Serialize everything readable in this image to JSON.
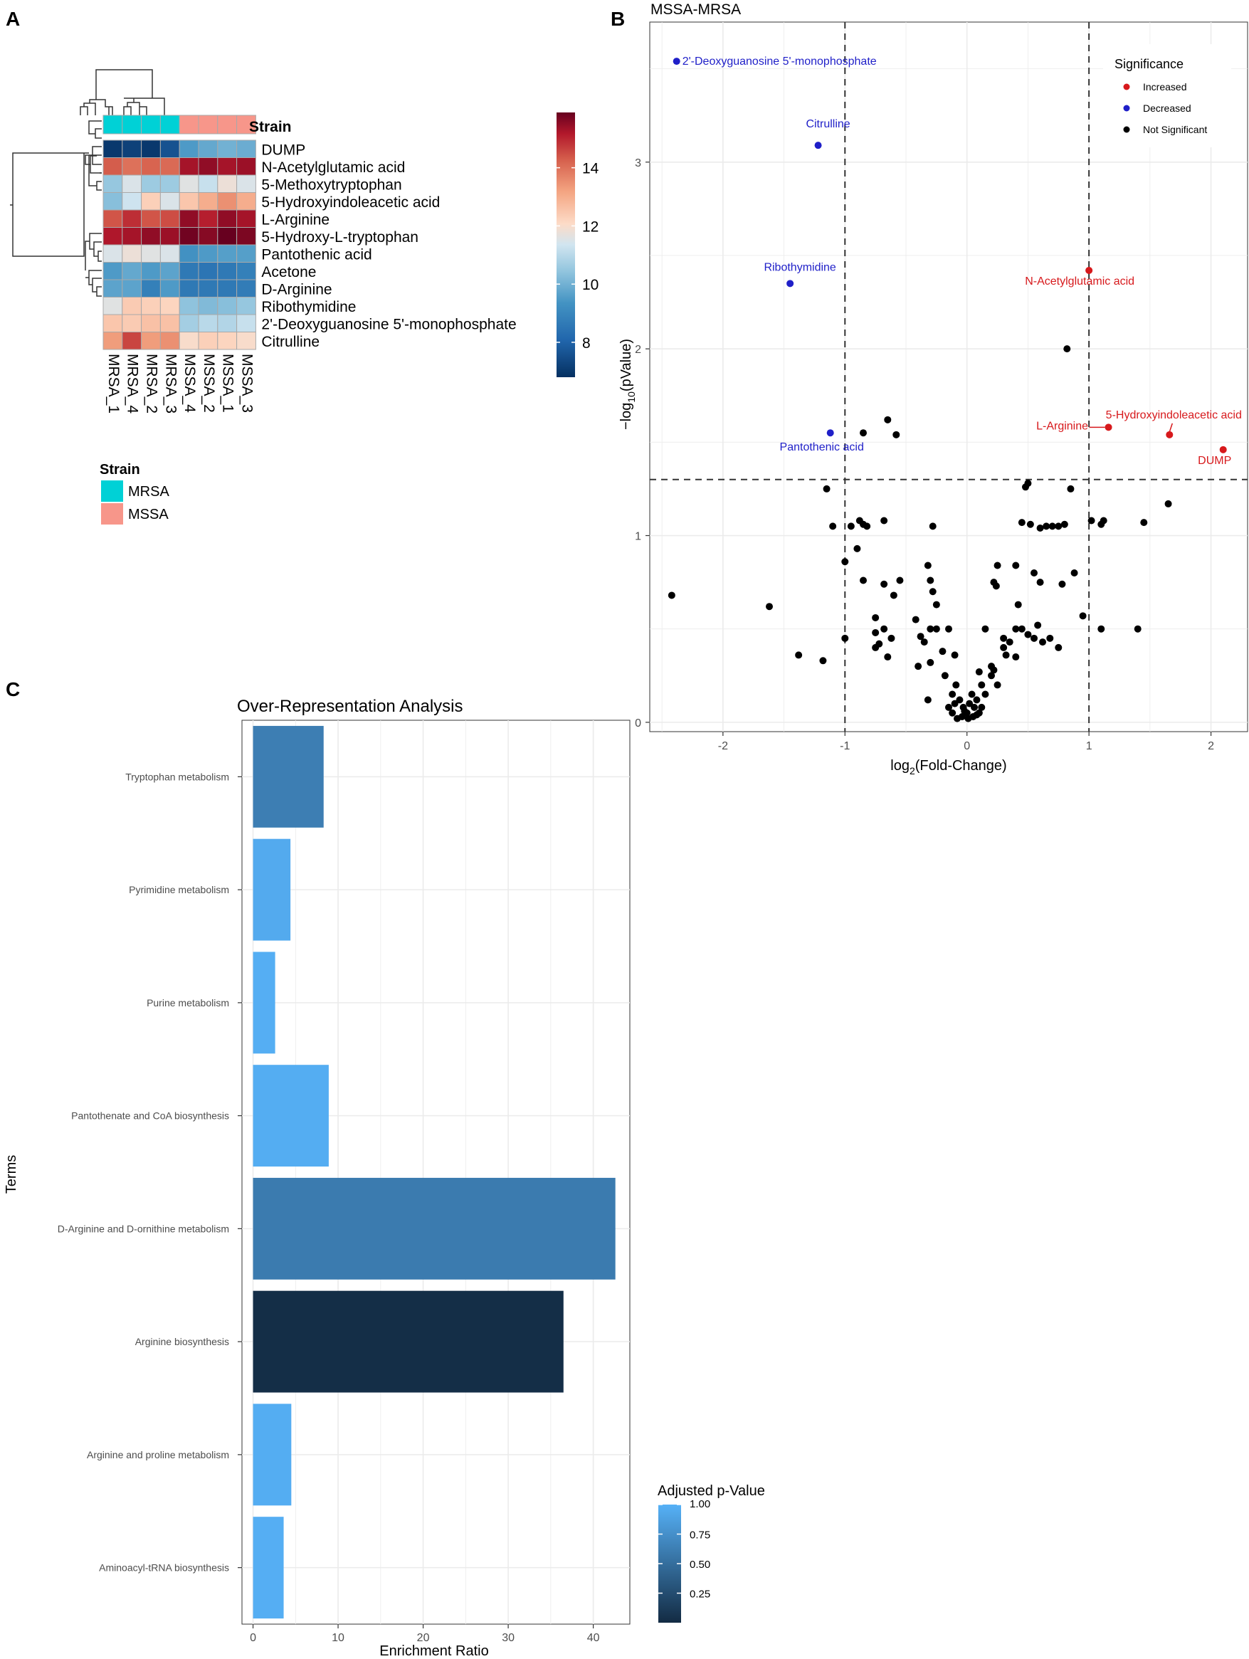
{
  "panels": {
    "a": "A",
    "b": "B",
    "c": "C"
  },
  "chart_data": [
    {
      "type": "heatmap",
      "panel": "A",
      "columns": [
        "MRSA_1",
        "MRSA_4",
        "MRSA_2",
        "MRSA_3",
        "MSSA_4",
        "MSSA_2",
        "MSSA_1",
        "MSSA_3"
      ],
      "column_strain": [
        "MRSA",
        "MRSA",
        "MRSA",
        "MRSA",
        "MSSA",
        "MSSA",
        "MSSA",
        "MSSA"
      ],
      "annotation_title": "Strain",
      "rows": [
        "DUMP",
        "N-Acetylglutamic acid",
        "5-Methoxytryptophan",
        "5-Hydroxyindoleacetic acid",
        "L-Arginine",
        "5-Hydroxy-L-tryptophan",
        "Pantothenic acid",
        "Acetone",
        "D-Arginine",
        "Ribothymidine",
        "2'-Deoxyguanosine 5'-monophosphate",
        "Citrulline"
      ],
      "values": [
        [
          7.0,
          7.2,
          7.0,
          7.6,
          9.5,
          9.8,
          10.0,
          9.9
        ],
        [
          14.3,
          14.0,
          14.2,
          14.1,
          15.3,
          15.5,
          15.3,
          15.4
        ],
        [
          10.5,
          11.5,
          10.6,
          10.6,
          11.6,
          11.2,
          11.8,
          11.5
        ],
        [
          10.3,
          11.3,
          12.3,
          11.5,
          12.5,
          13.0,
          13.5,
          13.0
        ],
        [
          14.4,
          14.9,
          14.4,
          14.5,
          15.5,
          15.1,
          15.5,
          15.3
        ],
        [
          15.2,
          15.3,
          15.5,
          15.4,
          15.8,
          15.6,
          15.9,
          15.7
        ],
        [
          11.5,
          11.8,
          11.6,
          11.5,
          9.3,
          9.5,
          9.6,
          9.6
        ],
        [
          9.5,
          9.8,
          9.5,
          9.7,
          8.6,
          8.5,
          8.6,
          8.8
        ],
        [
          9.7,
          9.7,
          8.8,
          9.5,
          8.6,
          8.6,
          8.6,
          8.7
        ],
        [
          11.6,
          12.4,
          12.3,
          12.2,
          10.4,
          10.2,
          10.3,
          10.5
        ],
        [
          12.5,
          12.4,
          12.6,
          12.6,
          10.7,
          11.0,
          10.9,
          11.2
        ],
        [
          13.3,
          14.6,
          13.3,
          13.5,
          12.0,
          12.3,
          12.2,
          12.0
        ]
      ],
      "colorbar_ticks": [
        8,
        10,
        12,
        14
      ],
      "colorbar_range": [
        6.8,
        15.9
      ],
      "legend_title": "Strain",
      "legend": [
        {
          "label": "MRSA",
          "color": "#00d1d6"
        },
        {
          "label": "MSSA",
          "color": "#f7968a"
        }
      ]
    },
    {
      "type": "scatter",
      "panel": "B",
      "title": "MSSA-MRSA",
      "xlabel": "log2(Fold-Change)",
      "ylabel": "-log10(pValue)",
      "xlim": [
        -2.6,
        2.3
      ],
      "ylim": [
        -0.05,
        3.75
      ],
      "xticks": [
        -2,
        -1,
        0,
        1,
        2
      ],
      "yticks": [
        0,
        1,
        2,
        3
      ],
      "xtick_labels": [
        "-2",
        "-1",
        "0",
        "1",
        "2"
      ],
      "ytick_labels": [
        "0",
        "1",
        "2",
        "3"
      ],
      "vlines": [
        -1,
        1
      ],
      "hline": 1.3,
      "legend_title": "Significance",
      "legend": [
        {
          "label": "Increased",
          "color": "#d7191c"
        },
        {
          "label": "Decreased",
          "color": "#1f1fc8"
        },
        {
          "label": "Not Significant",
          "color": "#000000"
        }
      ],
      "labeled_points": [
        {
          "label": "2'-Deoxyguanosine 5'-monophosphate",
          "x": -2.38,
          "y": 3.54,
          "group": "Decreased"
        },
        {
          "label": "Citrulline",
          "x": -1.22,
          "y": 3.09,
          "group": "Decreased"
        },
        {
          "label": "Ribothymidine",
          "x": -1.45,
          "y": 2.35,
          "group": "Decreased"
        },
        {
          "label": "Pantothenic acid",
          "x": -1.12,
          "y": 1.55,
          "group": "Decreased"
        },
        {
          "label": "N-Acetylglutamic acid",
          "x": 1.0,
          "y": 2.42,
          "group": "Increased"
        },
        {
          "label": "L-Arginine",
          "x": 1.16,
          "y": 1.58,
          "group": "Increased"
        },
        {
          "label": "5-Hydroxyindoleacetic acid",
          "x": 1.66,
          "y": 1.54,
          "group": "Increased"
        },
        {
          "label": "DUMP",
          "x": 2.1,
          "y": 1.46,
          "group": "Increased"
        }
      ],
      "points_ns": [
        [
          0.82,
          2.0
        ],
        [
          -0.85,
          1.55
        ],
        [
          -0.65,
          1.62
        ],
        [
          -0.58,
          1.54
        ],
        [
          0.5,
          1.28
        ],
        [
          0.48,
          1.26
        ],
        [
          0.85,
          1.25
        ],
        [
          -1.15,
          1.25
        ],
        [
          1.65,
          1.17
        ],
        [
          -1.1,
          1.05
        ],
        [
          -0.95,
          1.05
        ],
        [
          -0.88,
          1.08
        ],
        [
          -0.85,
          1.06
        ],
        [
          -0.82,
          1.05
        ],
        [
          -0.68,
          1.08
        ],
        [
          -0.28,
          1.05
        ],
        [
          0.45,
          1.07
        ],
        [
          0.52,
          1.06
        ],
        [
          0.6,
          1.04
        ],
        [
          0.65,
          1.05
        ],
        [
          0.7,
          1.05
        ],
        [
          0.75,
          1.05
        ],
        [
          0.8,
          1.06
        ],
        [
          1.02,
          1.08
        ],
        [
          1.1,
          1.06
        ],
        [
          1.12,
          1.08
        ],
        [
          1.45,
          1.07
        ],
        [
          -1.0,
          0.86
        ],
        [
          -0.9,
          0.93
        ],
        [
          0.88,
          0.8
        ],
        [
          -2.42,
          0.68
        ],
        [
          -1.62,
          0.62
        ],
        [
          -0.85,
          0.76
        ],
        [
          -0.68,
          0.74
        ],
        [
          -0.6,
          0.68
        ],
        [
          -0.55,
          0.76
        ],
        [
          -0.32,
          0.84
        ],
        [
          -0.3,
          0.76
        ],
        [
          -0.28,
          0.7
        ],
        [
          -0.25,
          0.63
        ],
        [
          0.25,
          0.84
        ],
        [
          0.22,
          0.75
        ],
        [
          0.24,
          0.73
        ],
        [
          0.4,
          0.84
        ],
        [
          0.42,
          0.63
        ],
        [
          0.55,
          0.8
        ],
        [
          0.6,
          0.75
        ],
        [
          0.78,
          0.74
        ],
        [
          0.95,
          0.57
        ],
        [
          1.1,
          0.5
        ],
        [
          1.4,
          0.5
        ],
        [
          -1.0,
          0.45
        ],
        [
          -0.75,
          0.56
        ],
        [
          -0.75,
          0.48
        ],
        [
          -0.72,
          0.42
        ],
        [
          -0.68,
          0.5
        ],
        [
          -0.62,
          0.45
        ],
        [
          -0.42,
          0.55
        ],
        [
          -0.38,
          0.46
        ],
        [
          -0.35,
          0.43
        ],
        [
          -0.3,
          0.5
        ],
        [
          -0.25,
          0.5
        ],
        [
          -0.15,
          0.5
        ],
        [
          0.15,
          0.5
        ],
        [
          0.3,
          0.45
        ],
        [
          0.35,
          0.43
        ],
        [
          0.4,
          0.5
        ],
        [
          0.45,
          0.5
        ],
        [
          0.5,
          0.47
        ],
        [
          0.55,
          0.45
        ],
        [
          0.58,
          0.52
        ],
        [
          0.62,
          0.43
        ],
        [
          0.68,
          0.45
        ],
        [
          0.75,
          0.4
        ],
        [
          -0.75,
          0.4
        ],
        [
          -1.38,
          0.36
        ],
        [
          -1.18,
          0.33
        ],
        [
          -0.65,
          0.35
        ],
        [
          -0.4,
          0.3
        ],
        [
          -0.3,
          0.32
        ],
        [
          -0.2,
          0.38
        ],
        [
          -0.1,
          0.36
        ],
        [
          0.2,
          0.3
        ],
        [
          0.3,
          0.4
        ],
        [
          0.32,
          0.36
        ],
        [
          0.4,
          0.35
        ],
        [
          -0.32,
          0.12
        ],
        [
          -0.18,
          0.25
        ],
        [
          -0.12,
          0.15
        ],
        [
          -0.09,
          0.2
        ],
        [
          -0.06,
          0.12
        ],
        [
          -0.03,
          0.08
        ],
        [
          0.0,
          0.05
        ],
        [
          0.02,
          0.1
        ],
        [
          0.04,
          0.15
        ],
        [
          0.06,
          0.08
        ],
        [
          0.08,
          0.12
        ],
        [
          0.1,
          0.05
        ],
        [
          0.12,
          0.2
        ],
        [
          0.15,
          0.15
        ],
        [
          0.1,
          0.27
        ],
        [
          0.2,
          0.25
        ],
        [
          0.22,
          0.28
        ],
        [
          0.25,
          0.2
        ],
        [
          -0.12,
          0.05
        ],
        [
          -0.08,
          0.02
        ],
        [
          -0.04,
          0.03
        ],
        [
          0.01,
          0.02
        ],
        [
          0.05,
          0.03
        ],
        [
          0.08,
          0.04
        ],
        [
          -0.15,
          0.08
        ],
        [
          -0.1,
          0.1
        ],
        [
          0.12,
          0.08
        ],
        [
          -0.02,
          0.06
        ]
      ]
    },
    {
      "type": "bar",
      "panel": "C",
      "orientation": "horizontal",
      "title": "Over-Representation Analysis",
      "xlabel": "Enrichment Ratio",
      "ylabel": "Terms",
      "xlim": [
        -1.3,
        44.3
      ],
      "xticks": [
        0,
        10,
        20,
        30,
        40
      ],
      "categories": [
        "Tryptophan metabolism",
        "Pyrimidine metabolism",
        "Purine metabolism",
        "Pantothenate and CoA biosynthesis",
        "D-Arginine and D-ornithine metabolism",
        "Arginine biosynthesis",
        "Arginine and proline metabolism",
        "Aminoacyl-tRNA biosynthesis"
      ],
      "values": [
        8.3,
        4.4,
        2.6,
        8.9,
        42.6,
        36.5,
        4.5,
        3.6
      ],
      "adjusted_p": [
        0.62,
        0.95,
        0.98,
        0.97,
        0.6,
        0.02,
        0.97,
        0.98
      ],
      "colorbar_title": "Adjusted p-Value",
      "colorbar_ticks": [
        1.0,
        0.75,
        0.5,
        0.25
      ],
      "colorbar_tick_labels": [
        "1.00",
        "0.75",
        "0.50",
        "0.25"
      ]
    }
  ]
}
